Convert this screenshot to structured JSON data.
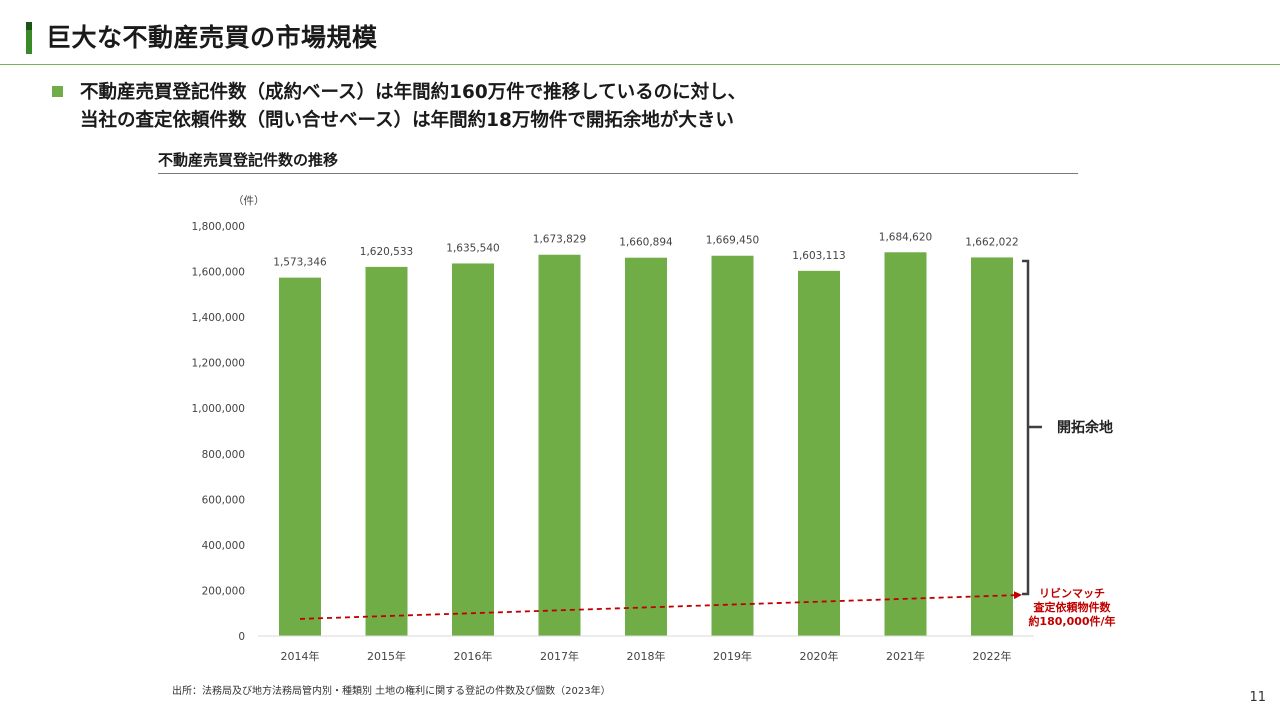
{
  "header": {
    "title": "巨大な不動産売買の市場規模",
    "lead_lines": [
      "不動産売買登記件数（成約ベース）は年間約160万件で推移しているのに対し、",
      "当社の査定依頼件数（問い合せベース）は年間約18万物件で開拓余地が大きい"
    ]
  },
  "chart_data": {
    "type": "bar",
    "title": "不動産売買登記件数の推移",
    "unit_label": "（件）",
    "categories": [
      "2014年",
      "2015年",
      "2016年",
      "2017年",
      "2018年",
      "2019年",
      "2020年",
      "2021年",
      "2022年"
    ],
    "values": [
      1573346,
      1620533,
      1635540,
      1673829,
      1660894,
      1669450,
      1603113,
      1684620,
      1662022
    ],
    "value_labels": [
      "1,573,346",
      "1,620,533",
      "1,635,540",
      "1,673,829",
      "1,660,894",
      "1,669,450",
      "1,603,113",
      "1,684,620",
      "1,662,022"
    ],
    "ylim": [
      0,
      1800000
    ],
    "yticks": [
      0,
      200000,
      400000,
      600000,
      800000,
      1000000,
      1200000,
      1400000,
      1600000,
      1800000
    ],
    "ytick_labels": [
      "0",
      "200,000",
      "400,000",
      "600,000",
      "800,000",
      "1,000,000",
      "1,200,000",
      "1,400,000",
      "1,600,000",
      "1,800,000"
    ],
    "grid": false,
    "bar_color": "#70ad47",
    "trend_line": {
      "color": "#c00000",
      "start_value": 75000,
      "end_value": 180000
    },
    "annotations": {
      "bracket_label": "開拓余地",
      "trend_label_lines": [
        "リビンマッチ",
        "査定依頼物件数",
        "約180,000件/年"
      ],
      "trend_label_color": "#c00000"
    }
  },
  "footer": {
    "source": "出所：法務局及び地方法務局管内別・種類別 土地の権利に関する登記の件数及び個数（2023年）",
    "page_number": "11"
  }
}
